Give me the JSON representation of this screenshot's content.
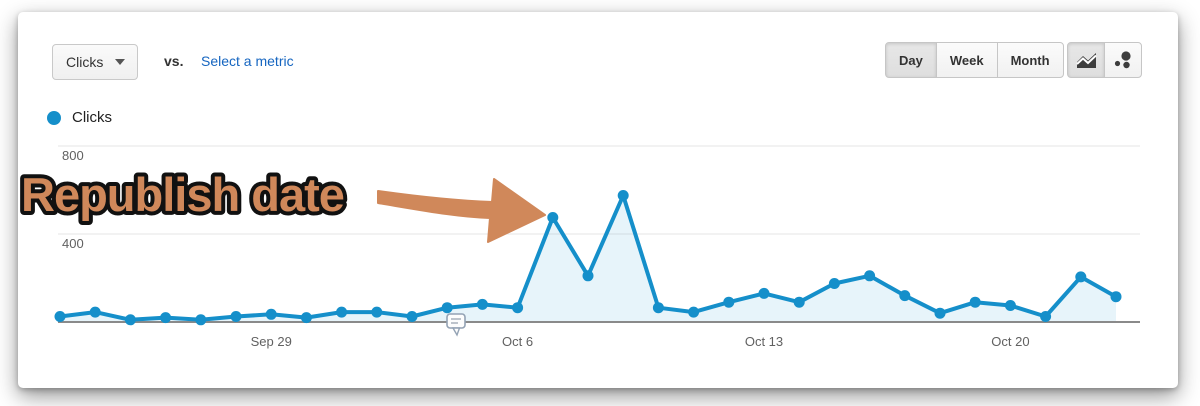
{
  "controls": {
    "metric_dropdown": {
      "label": "Clicks",
      "icon": "caret-down-icon"
    },
    "vs_label": "vs.",
    "select_metric_link": "Select a metric",
    "granularity": [
      {
        "label": "Day",
        "selected": true
      },
      {
        "label": "Week",
        "selected": false
      },
      {
        "label": "Month",
        "selected": false
      }
    ],
    "chart_type_buttons": [
      {
        "icon": "line-chart-icon",
        "selected": true
      },
      {
        "icon": "motion-chart-icon",
        "selected": false
      }
    ]
  },
  "legend": {
    "label": "Clicks",
    "color": "#158fca"
  },
  "annotation_callout": {
    "text": "Republish date",
    "color": "#d0885a",
    "outline": "#111111"
  },
  "axis_annotation": {
    "icon": "annotation-marker-icon",
    "near_label": "Oct 6"
  },
  "chart_data": {
    "type": "area",
    "series_name": "Clicks",
    "x_unit": "day",
    "x_tick_labels": [
      "Sep 29",
      "Oct 6",
      "Oct 13",
      "Oct 20"
    ],
    "x_tick_indices": [
      6,
      13,
      20,
      27
    ],
    "y_ticks": [
      400,
      800
    ],
    "ylim": [
      0,
      800
    ],
    "grid": true,
    "values": [
      25,
      45,
      10,
      20,
      10,
      25,
      35,
      20,
      45,
      45,
      25,
      65,
      80,
      65,
      475,
      210,
      575,
      65,
      45,
      90,
      130,
      90,
      175,
      210,
      120,
      40,
      90,
      75,
      25,
      205,
      115
    ],
    "line_color": "#158fca",
    "fill_opacity": 0.1,
    "grid_color": "#e6e6e6",
    "axis_line_color": "#8a8a8a",
    "tick_label_color": "#616161"
  }
}
